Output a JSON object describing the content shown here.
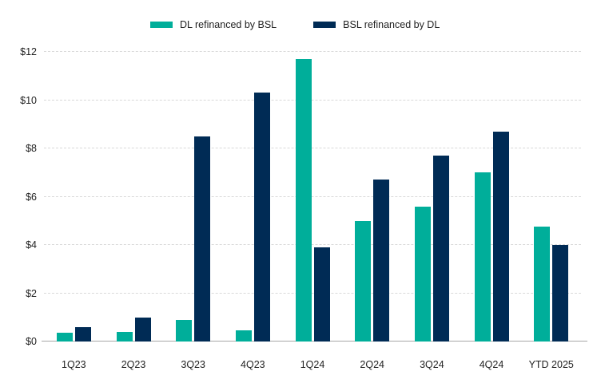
{
  "chart_data": {
    "type": "bar",
    "title": "",
    "xlabel": "",
    "ylabel": "",
    "categories": [
      "1Q23",
      "2Q23",
      "3Q23",
      "4Q23",
      "1Q24",
      "2Q24",
      "3Q24",
      "4Q24",
      "YTD 2025"
    ],
    "series": [
      {
        "name": "DL refinanced by BSL",
        "color": "#00AE9A",
        "values": [
          0.35,
          0.4,
          0.9,
          0.45,
          11.7,
          5.0,
          5.6,
          7.0,
          4.75
        ]
      },
      {
        "name": "BSL refinanced by DL",
        "color": "#002B55",
        "values": [
          0.6,
          1.0,
          8.5,
          10.3,
          3.9,
          6.7,
          7.7,
          8.7,
          4.0
        ]
      }
    ],
    "ylim": [
      0,
      12
    ],
    "ytick_step": 2,
    "ytick_labels": [
      "$0",
      "$2",
      "$4",
      "$6",
      "$8",
      "$10",
      "$12"
    ],
    "grid": "horizontal-dashed",
    "legend_position": "top"
  },
  "colors": {
    "background": "#ffffff",
    "gridline": "#d9d9d9",
    "baseline": "#a6a6a6",
    "text": "#222222"
  }
}
